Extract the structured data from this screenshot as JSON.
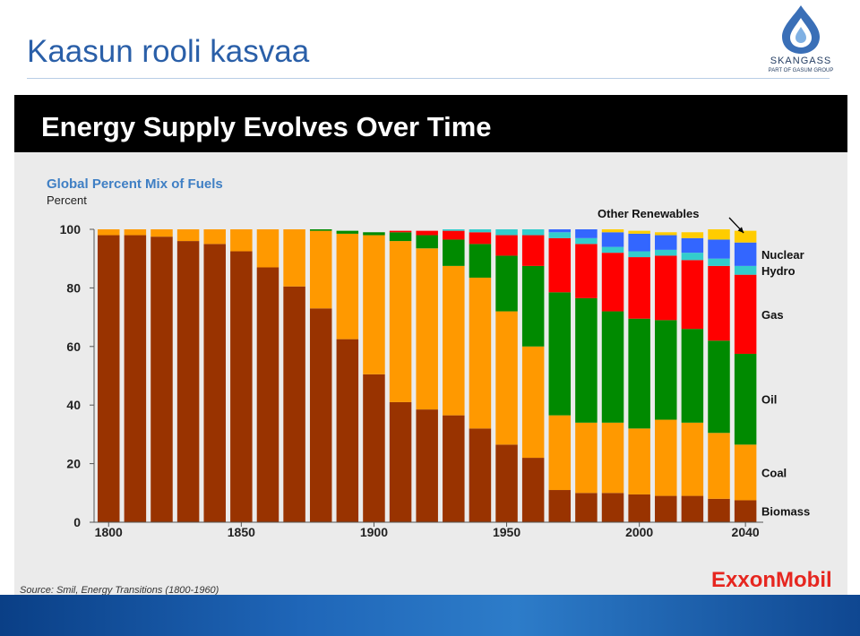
{
  "slide": {
    "title": "Kaasun rooli kasvaa"
  },
  "logo": {
    "name": "SKANGASS",
    "tagline": "PART OF GASUM GROUP"
  },
  "panel": {
    "title": "Energy Supply Evolves Over Time",
    "source": "Source: Smil, Energy Transitions (1800-1960)",
    "brand": "ExxonMobil"
  },
  "colors": {
    "biomass": "#993300",
    "coal": "#ff9900",
    "oil": "#008a00",
    "gas": "#ff0000",
    "hydro": "#33cccc",
    "nuclear": "#3366ff",
    "other_renewables": "#ffcc00",
    "accent_blue": "#2a5fa8"
  },
  "chart_data": {
    "type": "bar",
    "stacked": true,
    "subtitle": "Global Percent Mix of Fuels",
    "ylabel": "Percent",
    "ylim": [
      0,
      100
    ],
    "yticks": [
      0,
      20,
      40,
      60,
      80,
      100
    ],
    "xticks": [
      "1800",
      "1850",
      "1900",
      "1950",
      "2000",
      "2040"
    ],
    "categories": [
      1800,
      1810,
      1820,
      1830,
      1840,
      1850,
      1860,
      1870,
      1880,
      1890,
      1900,
      1910,
      1920,
      1930,
      1940,
      1950,
      1960,
      1970,
      1980,
      1990,
      2000,
      2010,
      2020,
      2030,
      2040
    ],
    "series": [
      {
        "name": "Biomass",
        "key": "biomass",
        "values": [
          98,
          98,
          97.5,
          96,
          95,
          92.5,
          87,
          80.5,
          73,
          62.5,
          50.5,
          41,
          38.5,
          36.5,
          32,
          26.5,
          22,
          11,
          10,
          10,
          9.5,
          9,
          9,
          8,
          7.5
        ]
      },
      {
        "name": "Coal",
        "key": "coal",
        "values": [
          2,
          2,
          2.5,
          4,
          5,
          7.5,
          13,
          19.5,
          26.5,
          36,
          47.5,
          55,
          55,
          51,
          51.5,
          45.5,
          38,
          25.5,
          24,
          24,
          22.5,
          26,
          25,
          22.5,
          19
        ]
      },
      {
        "name": "Oil",
        "key": "oil",
        "values": [
          0,
          0,
          0,
          0,
          0,
          0,
          0,
          0,
          0.5,
          1,
          1,
          3,
          4.5,
          9,
          11.5,
          19,
          27.5,
          42,
          42.5,
          38,
          37.5,
          34,
          32,
          31.5,
          31
        ]
      },
      {
        "name": "Gas",
        "key": "gas",
        "values": [
          0,
          0,
          0,
          0,
          0,
          0,
          0,
          0,
          0,
          0,
          0,
          0.5,
          1.5,
          3,
          4,
          7,
          10.5,
          18.5,
          18.5,
          20,
          21,
          22,
          23.5,
          25.5,
          27
        ]
      },
      {
        "name": "Hydro",
        "key": "hydro",
        "values": [
          0,
          0,
          0,
          0,
          0,
          0,
          0,
          0,
          0,
          0,
          0,
          0,
          0,
          0.5,
          1,
          2,
          2,
          2,
          2,
          2,
          2,
          2,
          2.5,
          2.5,
          3
        ]
      },
      {
        "name": "Nuclear",
        "key": "nuclear",
        "values": [
          0,
          0,
          0,
          0,
          0,
          0,
          0,
          0,
          0,
          0,
          0,
          0,
          0,
          0,
          0,
          0,
          0,
          1,
          3,
          5,
          6,
          5,
          5,
          6.5,
          8
        ]
      },
      {
        "name": "Other Renewables",
        "key": "other_renewables",
        "values": [
          0,
          0,
          0,
          0,
          0,
          0,
          0,
          0,
          0,
          0,
          0,
          0,
          0,
          0,
          0,
          0,
          0,
          0,
          0,
          1,
          1,
          1,
          2,
          3.5,
          4
        ]
      }
    ],
    "series_labels": [
      "Nuclear",
      "Hydro",
      "Gas",
      "Oil",
      "Coal",
      "Biomass"
    ],
    "annotation": "Other Renewables"
  }
}
